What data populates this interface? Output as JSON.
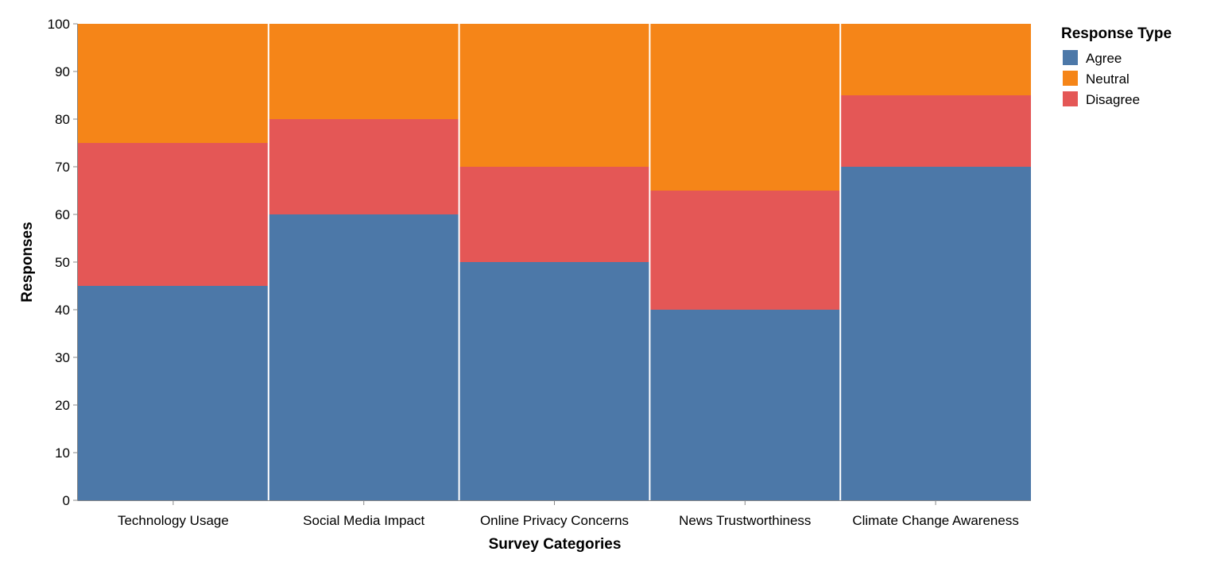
{
  "chart_data": {
    "type": "bar",
    "stacked": true,
    "title": "",
    "xlabel": "Survey Categories",
    "ylabel": "Responses",
    "ylim": [
      0,
      100
    ],
    "yticks": [
      0,
      10,
      20,
      30,
      40,
      50,
      60,
      70,
      80,
      90,
      100
    ],
    "grid": false,
    "legend_title": "Response Type",
    "legend_position": "top-right",
    "categories": [
      "Technology Usage",
      "Social Media Impact",
      "Online Privacy Concerns",
      "News Trustworthiness",
      "Climate Change Awareness"
    ],
    "series": [
      {
        "name": "Agree",
        "color": "#4c78a8",
        "values": [
          45,
          60,
          50,
          40,
          70
        ]
      },
      {
        "name": "Disagree",
        "color": "#e45756",
        "values": [
          30,
          20,
          20,
          25,
          15
        ]
      },
      {
        "name": "Neutral",
        "color": "#f58518",
        "values": [
          25,
          20,
          30,
          35,
          15
        ]
      }
    ],
    "legend_order": [
      "Agree",
      "Neutral",
      "Disagree"
    ]
  }
}
